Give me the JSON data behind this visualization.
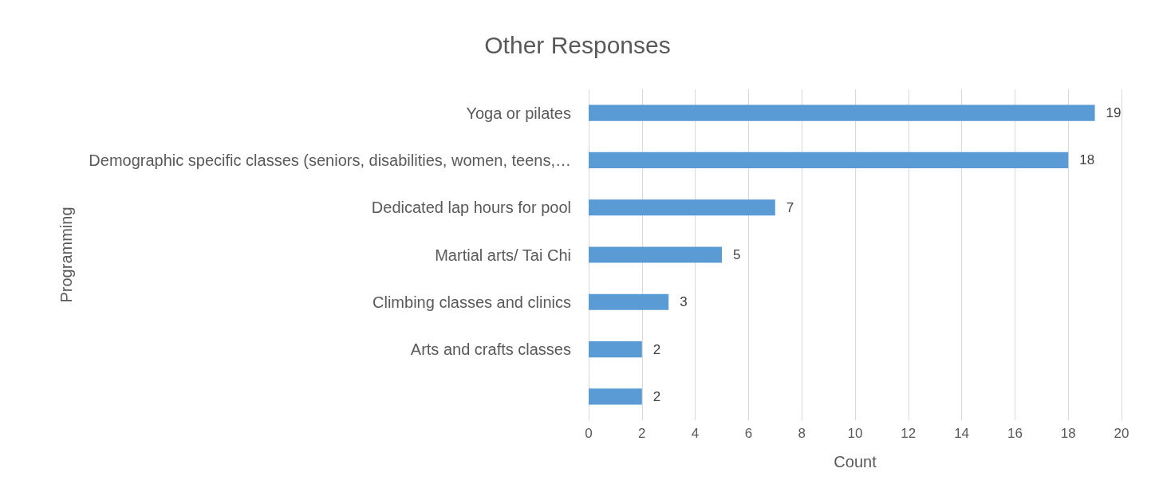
{
  "chart_data": {
    "type": "bar",
    "title": "Other Responses",
    "orientation": "horizontal",
    "categories": [
      "Yoga or pilates",
      "Demographic specific classes (seniors, disabilities, women, teens,…",
      "Dedicated lap hours for pool",
      "Martial arts/ Tai Chi",
      "Climbing classes and clinics",
      "Arts and crafts classes",
      null
    ],
    "values": [
      19,
      18,
      7,
      5,
      3,
      2,
      2
    ],
    "color": "#5b9bd5",
    "xlabel": "Count",
    "ylabel": "Programming",
    "xlim": [
      0,
      20
    ],
    "xticks": [
      0,
      2,
      4,
      6,
      8,
      10,
      12,
      14,
      16,
      18,
      20
    ],
    "grid": "x",
    "data_labels": true
  }
}
